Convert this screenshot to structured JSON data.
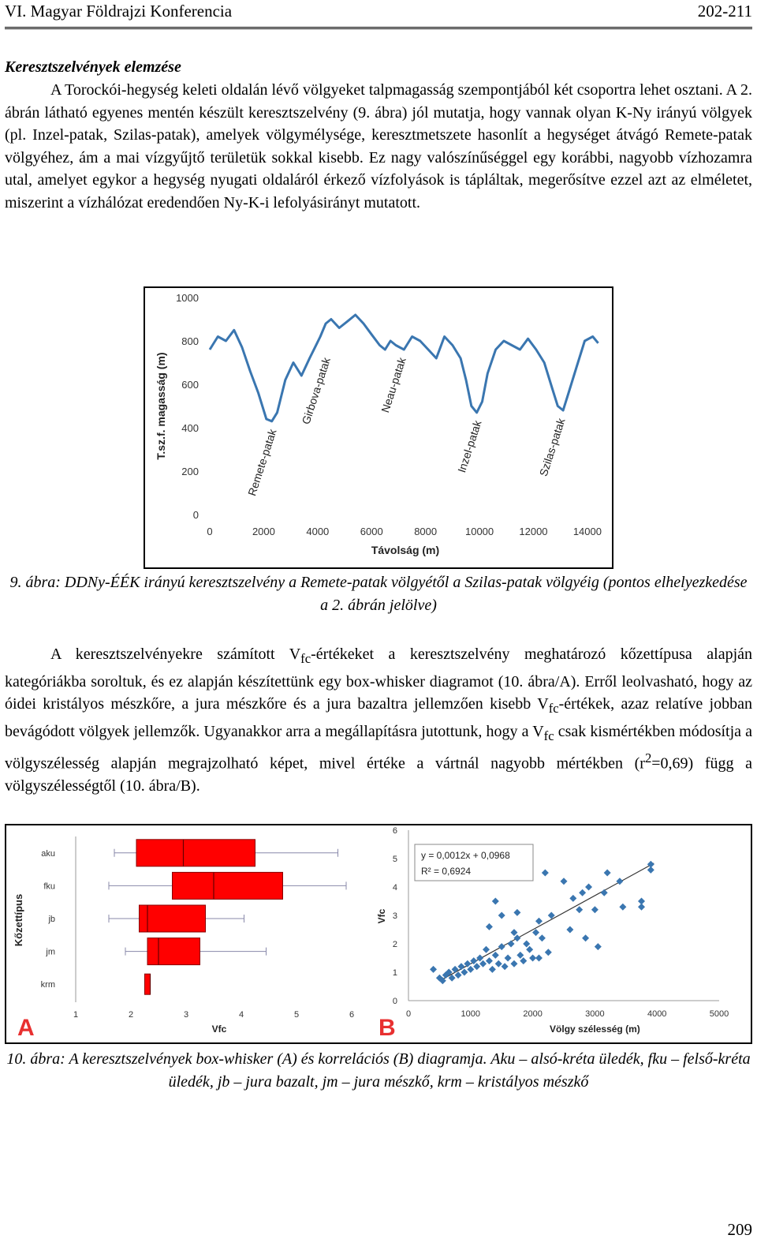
{
  "header": {
    "left": "VI. Magyar Földrajzi Konferencia",
    "right": "202-211"
  },
  "section_title": "Keresztszelvények elemzése",
  "paragraph1": "A Torockói-hegység keleti oldalán lévő völgyeket talpmagasság szempontjából két csoportra lehet osztani. A 2. ábrán látható egyenes mentén készült keresztszelvény (9. ábra) jól mutatja, hogy vannak olyan K-Ny irányú völgyek (pl. Inzel-patak, Szilas-patak), amelyek völgymélysége, keresztmetszete hasonlít a hegységet átvágó Remete-patak völgyéhez, ám a mai vízgyűjtő területük sokkal kisebb. Ez nagy valószínűséggel egy korábbi, nagyobb vízhozamra utal, amelyet egykor a hegység nyugati oldaláról érkező vízfolyások is tápláltak, megerősítve ezzel azt az elméletet, miszerint a vízhálózat eredendően Ny-K-i lefolyásirányt mutatott.",
  "caption9": "9. ábra: DDNy-ÉÉK irányú keresztszelvény a Remete-patak völgyétől a Szilas-patak völgyéig (pontos elhelyezkedése a 2. ábrán jelölve)",
  "paragraph2": {
    "a": "A keresztszelvényekre számított V",
    "sub1": "fc",
    "b": "-értékeket a keresztszelvény meghatározó kőzettípusa alapján kategóriákba soroltuk, és ez alapján készítettünk egy box-whisker diagramot (10. ábra/A). Erről leolvasható, hogy az óidei kristályos mészkőre, a jura mészkőre és a jura bazaltra jellemzően kisebb V",
    "sub2": "fc",
    "c": "-értékek, azaz relatíve jobban bevágódott völgyek jellemzők. Ugyanakkor arra a megállapításra jutottunk, hogy a V",
    "sub3": "fc",
    "d": " csak kismértékben módosítja a völgyszélesség alapján megrajzolható képet, mivel értéke a vártnál nagyobb mértékben (r",
    "sup": "2",
    "e": "=0,69) függ a völgyszélességtől (10. ábra/B)."
  },
  "caption10": "10. ábra: A keresztszelvények box-whisker (A) és korrelációs (B) diagramja. Aku – alsó-kréta üledék, fku – felső-kréta üledék, jb – jura bazalt, jm – jura mészkő, krm – kristályos mészkő",
  "page_number": "209",
  "chart_data": [
    {
      "type": "line",
      "xlabel": "Távolság (m)",
      "ylabel": "T.sz.f. magasság (m)",
      "xlim": [
        0,
        14500
      ],
      "ylim": [
        0,
        1000
      ],
      "x_ticks": [
        "0",
        "2000",
        "4000",
        "6000",
        "8000",
        "10000",
        "12000",
        "14000"
      ],
      "y_ticks": [
        "0",
        "200",
        "400",
        "600",
        "800",
        "1000"
      ],
      "series": [
        {
          "color": "#3a76b0",
          "x": [
            0,
            300,
            600,
            900,
            1200,
            1500,
            1800,
            2100,
            2300,
            2500,
            2800,
            3100,
            3400,
            3700,
            3900,
            4100,
            4300,
            4500,
            4800,
            5100,
            5400,
            5700,
            6000,
            6300,
            6500,
            6700,
            6900,
            7200,
            7500,
            7800,
            8100,
            8400,
            8700,
            9000,
            9300,
            9500,
            9700,
            9900,
            10100,
            10300,
            10600,
            10900,
            11200,
            11500,
            11800,
            12100,
            12400,
            12700,
            12900,
            13100,
            13300,
            13600,
            13900,
            14200,
            14400
          ],
          "y": [
            760,
            820,
            800,
            850,
            770,
            660,
            560,
            440,
            430,
            470,
            620,
            700,
            640,
            720,
            770,
            820,
            880,
            900,
            860,
            890,
            920,
            880,
            830,
            780,
            760,
            800,
            780,
            760,
            820,
            800,
            760,
            720,
            820,
            780,
            720,
            620,
            500,
            470,
            520,
            650,
            760,
            800,
            780,
            760,
            810,
            760,
            700,
            580,
            500,
            480,
            560,
            680,
            800,
            820,
            790
          ]
        }
      ],
      "annotations": [
        {
          "text": "Remete-patak",
          "x": 2300,
          "y": 430
        },
        {
          "text": "Girbova-patak",
          "x": 4300,
          "y": 760
        },
        {
          "text": "Neau-patak",
          "x": 7100,
          "y": 760
        },
        {
          "text": "Inzel-patak",
          "x": 9900,
          "y": 470
        },
        {
          "text": "Szilas-patak",
          "x": 13000,
          "y": 480
        }
      ]
    },
    {
      "type": "box",
      "ylabel": "Kőzettípus",
      "xlabel": "Vfc",
      "xlim": [
        1,
        6.2
      ],
      "x_ticks": [
        "1",
        "2",
        "3",
        "4",
        "5",
        "6"
      ],
      "box_color": "#ff0000",
      "categories": [
        "aku",
        "fku",
        "jb",
        "jm",
        "krm"
      ],
      "boxes": [
        {
          "name": "aku",
          "min": 1.7,
          "q1": 2.1,
          "median": 2.95,
          "q3": 4.25,
          "max": 5.75
        },
        {
          "name": "fku",
          "min": 1.6,
          "q1": 2.75,
          "median": 3.5,
          "q3": 4.75,
          "max": 5.9
        },
        {
          "name": "jb",
          "min": 1.6,
          "q1": 2.15,
          "median": 2.3,
          "q3": 3.35,
          "max": 4.05
        },
        {
          "name": "jm",
          "min": 1.9,
          "q1": 2.3,
          "median": 2.5,
          "q3": 3.25,
          "max": 4.45
        },
        {
          "name": "krm",
          "min": 2.25,
          "q1": 2.25,
          "median": 2.35,
          "q3": 2.35,
          "max": 2.35
        }
      ],
      "panel_label": "A"
    },
    {
      "type": "scatter",
      "xlabel": "Völgy szélesség (m)",
      "ylabel": "Vfc",
      "xlim": [
        0,
        5000
      ],
      "ylim": [
        0,
        6
      ],
      "x_ticks": [
        "0",
        "1000",
        "2000",
        "3000",
        "4000",
        "5000"
      ],
      "y_ticks": [
        "0",
        "1",
        "2",
        "3",
        "4",
        "5",
        "6"
      ],
      "color": "#3a76b0",
      "equation": "y = 0,0012x + 0,0968",
      "r2": "R² = 0,6924",
      "trend": {
        "slope": 0.0012,
        "intercept": 0.0968,
        "x_from": 500,
        "x_to": 3950
      },
      "points": [
        [
          400,
          1.1
        ],
        [
          500,
          0.8
        ],
        [
          550,
          0.7
        ],
        [
          600,
          0.9
        ],
        [
          650,
          1.0
        ],
        [
          700,
          0.8
        ],
        [
          750,
          1.1
        ],
        [
          800,
          0.9
        ],
        [
          850,
          1.2
        ],
        [
          900,
          1.0
        ],
        [
          950,
          1.3
        ],
        [
          1000,
          1.1
        ],
        [
          1050,
          1.4
        ],
        [
          1100,
          1.2
        ],
        [
          1150,
          1.5
        ],
        [
          1200,
          1.3
        ],
        [
          1250,
          1.8
        ],
        [
          1300,
          1.4
        ],
        [
          1350,
          1.1
        ],
        [
          1400,
          1.6
        ],
        [
          1450,
          1.3
        ],
        [
          1500,
          1.9
        ],
        [
          1550,
          1.2
        ],
        [
          1600,
          1.5
        ],
        [
          1650,
          2.0
        ],
        [
          1700,
          1.3
        ],
        [
          1750,
          2.2
        ],
        [
          1800,
          1.6
        ],
        [
          1850,
          1.4
        ],
        [
          1900,
          2.0
        ],
        [
          1950,
          1.8
        ],
        [
          2000,
          1.5
        ],
        [
          2050,
          2.4
        ],
        [
          2100,
          2.8
        ],
        [
          2150,
          2.2
        ],
        [
          2200,
          4.5
        ],
        [
          2250,
          1.7
        ],
        [
          1300,
          2.6
        ],
        [
          1400,
          3.5
        ],
        [
          1500,
          3.0
        ],
        [
          1700,
          2.4
        ],
        [
          1750,
          3.1
        ],
        [
          2100,
          1.5
        ],
        [
          2300,
          3.0
        ],
        [
          2500,
          4.2
        ],
        [
          2600,
          2.5
        ],
        [
          2650,
          3.6
        ],
        [
          2750,
          3.2
        ],
        [
          2800,
          3.8
        ],
        [
          2850,
          2.2
        ],
        [
          2900,
          4.0
        ],
        [
          3000,
          3.2
        ],
        [
          3050,
          1.9
        ],
        [
          3150,
          3.8
        ],
        [
          3200,
          4.5
        ],
        [
          3400,
          4.2
        ],
        [
          3450,
          3.3
        ],
        [
          3750,
          3.5
        ],
        [
          3750,
          3.3
        ],
        [
          3900,
          4.8
        ],
        [
          3900,
          4.6
        ]
      ],
      "panel_label": "B"
    }
  ]
}
